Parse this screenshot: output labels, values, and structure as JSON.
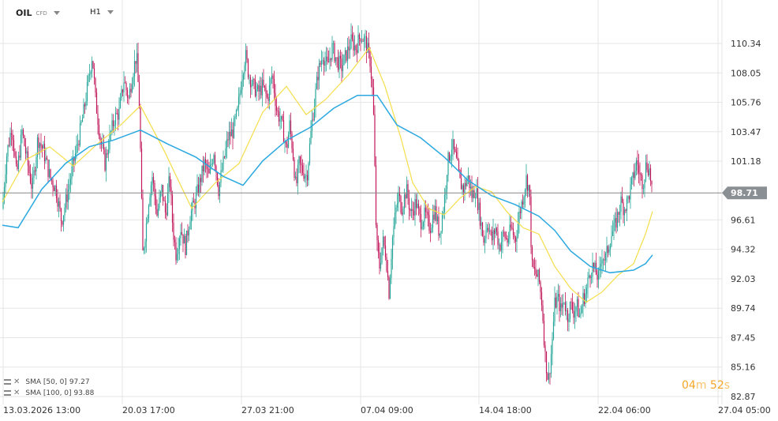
{
  "header": {
    "symbol": "OIL",
    "symbol_type": "CFD",
    "timeframe": "H1"
  },
  "indicators": [
    {
      "label": "SMA [50, 0]",
      "value": "97.27",
      "color": "#f5de4a"
    },
    {
      "label": "SMA [100, 0]",
      "value": "93.88",
      "color": "#2aa8e0"
    }
  ],
  "timer": {
    "minutes": "04",
    "m_unit": "m",
    "seconds": "52",
    "s_unit": "s"
  },
  "chart_data": {
    "type": "candlestick",
    "last_price": 98.71,
    "last_price_label": "98.71",
    "ylim": [
      82.87,
      111.8
    ],
    "yticks": [
      "110.34",
      "108.05",
      "105.76",
      "103.47",
      "101.18",
      "98.71",
      "96.61",
      "94.32",
      "92.03",
      "89.74",
      "87.45",
      "85.16",
      "82.87"
    ],
    "xticks": [
      "13.03.2026 13:00",
      "20.03 17:00",
      "27.03 21:00",
      "07.04 09:00",
      "14.04 18:00",
      "22.04 06:00",
      "27.04 05:00"
    ],
    "colors": {
      "up": "#26a69a",
      "down": "#c2185b",
      "grid": "#e6e6e6",
      "last_price": "#888888"
    },
    "price_path": [
      [
        0,
        97.5
      ],
      [
        5,
        101.5
      ],
      [
        12,
        104
      ],
      [
        18,
        100
      ],
      [
        25,
        103.5
      ],
      [
        32,
        101
      ],
      [
        38,
        99
      ],
      [
        45,
        103
      ],
      [
        52,
        102
      ],
      [
        60,
        100
      ],
      [
        68,
        99
      ],
      [
        75,
        96.5
      ],
      [
        82,
        98.5
      ],
      [
        90,
        101
      ],
      [
        97,
        103
      ],
      [
        103,
        105
      ],
      [
        108,
        107
      ],
      [
        114,
        109.5
      ],
      [
        118,
        106
      ],
      [
        124,
        103
      ],
      [
        130,
        101
      ],
      [
        136,
        103
      ],
      [
        142,
        104.5
      ],
      [
        148,
        105
      ],
      [
        154,
        107.5
      ],
      [
        160,
        106
      ],
      [
        165,
        108
      ],
      [
        170,
        109.5
      ],
      [
        174,
        105
      ],
      [
        176,
        99
      ],
      [
        178,
        94
      ],
      [
        182,
        96
      ],
      [
        186,
        98.5
      ],
      [
        190,
        100
      ],
      [
        196,
        97
      ],
      [
        202,
        99
      ],
      [
        207,
        97
      ],
      [
        212,
        100
      ],
      [
        216,
        96
      ],
      [
        220,
        94
      ],
      [
        226,
        96
      ],
      [
        232,
        94.5
      ],
      [
        238,
        97
      ],
      [
        244,
        98
      ],
      [
        250,
        99.5
      ],
      [
        256,
        101
      ],
      [
        262,
        100
      ],
      [
        268,
        102
      ],
      [
        274,
        99
      ],
      [
        280,
        101
      ],
      [
        286,
        103
      ],
      [
        292,
        103.5
      ],
      [
        298,
        105
      ],
      [
        304,
        108
      ],
      [
        308,
        109.5
      ],
      [
        312,
        108
      ],
      [
        318,
        107
      ],
      [
        324,
        106.5
      ],
      [
        330,
        107
      ],
      [
        336,
        106
      ],
      [
        342,
        108
      ],
      [
        348,
        105
      ],
      [
        352,
        104.5
      ],
      [
        356,
        103.5
      ],
      [
        360,
        102
      ],
      [
        364,
        104
      ],
      [
        368,
        102
      ],
      [
        372,
        99
      ],
      [
        376,
        101
      ],
      [
        380,
        100.5
      ],
      [
        386,
        100
      ],
      [
        392,
        104
      ],
      [
        396,
        106
      ],
      [
        400,
        108
      ],
      [
        406,
        109.5
      ],
      [
        412,
        108.5
      ],
      [
        418,
        110
      ],
      [
        424,
        109
      ],
      [
        430,
        108.5
      ],
      [
        436,
        109.5
      ],
      [
        442,
        110.5
      ],
      [
        448,
        110
      ],
      [
        454,
        111
      ],
      [
        460,
        110.5
      ],
      [
        466,
        109
      ],
      [
        470,
        106
      ],
      [
        474,
        95
      ],
      [
        478,
        93
      ],
      [
        482,
        95
      ],
      [
        486,
        94
      ],
      [
        490,
        91
      ],
      [
        494,
        95
      ],
      [
        498,
        97
      ],
      [
        502,
        98.5
      ],
      [
        506,
        97.5
      ],
      [
        512,
        99
      ],
      [
        518,
        97
      ],
      [
        524,
        98
      ],
      [
        530,
        96.5
      ],
      [
        536,
        97
      ],
      [
        542,
        96
      ],
      [
        548,
        97.5
      ],
      [
        554,
        95.5
      ],
      [
        560,
        98
      ],
      [
        564,
        101
      ],
      [
        570,
        102.5
      ],
      [
        576,
        101
      ],
      [
        580,
        99.5
      ],
      [
        585,
        99
      ],
      [
        590,
        100
      ],
      [
        595,
        98.5
      ],
      [
        600,
        99
      ],
      [
        605,
        97
      ],
      [
        610,
        95
      ],
      [
        615,
        96.5
      ],
      [
        620,
        95
      ],
      [
        625,
        96
      ],
      [
        630,
        94.5
      ],
      [
        635,
        95.5
      ],
      [
        640,
        95
      ],
      [
        645,
        96
      ],
      [
        650,
        95
      ],
      [
        655,
        97
      ],
      [
        660,
        98.5
      ],
      [
        664,
        99.8
      ],
      [
        668,
        99
      ],
      [
        671,
        93
      ],
      [
        675,
        92.5
      ],
      [
        680,
        92
      ],
      [
        684,
        90
      ],
      [
        688,
        86
      ],
      [
        692,
        84
      ],
      [
        696,
        86.5
      ],
      [
        700,
        90
      ],
      [
        704,
        90.5
      ],
      [
        708,
        89.5
      ],
      [
        712,
        90.5
      ],
      [
        716,
        89
      ],
      [
        720,
        90
      ],
      [
        724,
        89.5
      ],
      [
        728,
        90
      ],
      [
        732,
        89
      ],
      [
        736,
        90.5
      ],
      [
        740,
        91
      ],
      [
        744,
        92.5
      ],
      [
        748,
        93
      ],
      [
        752,
        92.5
      ],
      [
        756,
        92
      ],
      [
        760,
        94
      ],
      [
        764,
        93.5
      ],
      [
        768,
        94.5
      ],
      [
        772,
        95.5
      ],
      [
        776,
        96
      ],
      [
        780,
        97
      ],
      [
        784,
        98
      ],
      [
        788,
        97.5
      ],
      [
        792,
        98
      ],
      [
        796,
        99
      ],
      [
        800,
        100
      ],
      [
        804,
        101.2
      ],
      [
        808,
        100
      ],
      [
        812,
        99.5
      ],
      [
        816,
        101
      ],
      [
        820,
        100.5
      ],
      [
        824,
        98.7
      ]
    ],
    "sma50_path": [
      [
        0,
        98
      ],
      [
        30,
        101.3
      ],
      [
        60,
        102.3
      ],
      [
        90,
        100.8
      ],
      [
        120,
        102.5
      ],
      [
        150,
        104
      ],
      [
        175,
        105.5
      ],
      [
        205,
        102
      ],
      [
        240,
        97.5
      ],
      [
        270,
        99.5
      ],
      [
        300,
        101
      ],
      [
        330,
        105
      ],
      [
        360,
        107
      ],
      [
        385,
        104.8
      ],
      [
        410,
        106
      ],
      [
        440,
        108
      ],
      [
        465,
        110
      ],
      [
        485,
        107
      ],
      [
        505,
        103
      ],
      [
        520,
        99.5
      ],
      [
        540,
        97.5
      ],
      [
        560,
        97
      ],
      [
        580,
        98.3
      ],
      [
        600,
        99.2
      ],
      [
        620,
        98.8
      ],
      [
        640,
        97.2
      ],
      [
        660,
        96
      ],
      [
        680,
        95.5
      ],
      [
        700,
        93
      ],
      [
        720,
        91.3
      ],
      [
        740,
        90.2
      ],
      [
        760,
        91
      ],
      [
        780,
        92.3
      ],
      [
        800,
        93.2
      ],
      [
        815,
        95.5
      ],
      [
        824,
        97.27
      ]
    ],
    "sma100_path": [
      [
        0,
        96.2
      ],
      [
        20,
        96
      ],
      [
        50,
        99
      ],
      [
        80,
        101
      ],
      [
        110,
        102.3
      ],
      [
        140,
        102.8
      ],
      [
        175,
        103.6
      ],
      [
        210,
        102.5
      ],
      [
        245,
        101.5
      ],
      [
        280,
        100
      ],
      [
        305,
        99.3
      ],
      [
        330,
        101.2
      ],
      [
        360,
        102.8
      ],
      [
        390,
        103.8
      ],
      [
        420,
        105.3
      ],
      [
        450,
        106.3
      ],
      [
        475,
        106.3
      ],
      [
        500,
        104
      ],
      [
        530,
        103
      ],
      [
        560,
        101.5
      ],
      [
        590,
        99.7
      ],
      [
        620,
        98.5
      ],
      [
        650,
        97.8
      ],
      [
        680,
        96.9
      ],
      [
        700,
        95.8
      ],
      [
        720,
        94.2
      ],
      [
        745,
        93
      ],
      [
        770,
        92.5
      ],
      [
        800,
        92.7
      ],
      [
        815,
        93.2
      ],
      [
        824,
        93.88
      ]
    ]
  }
}
